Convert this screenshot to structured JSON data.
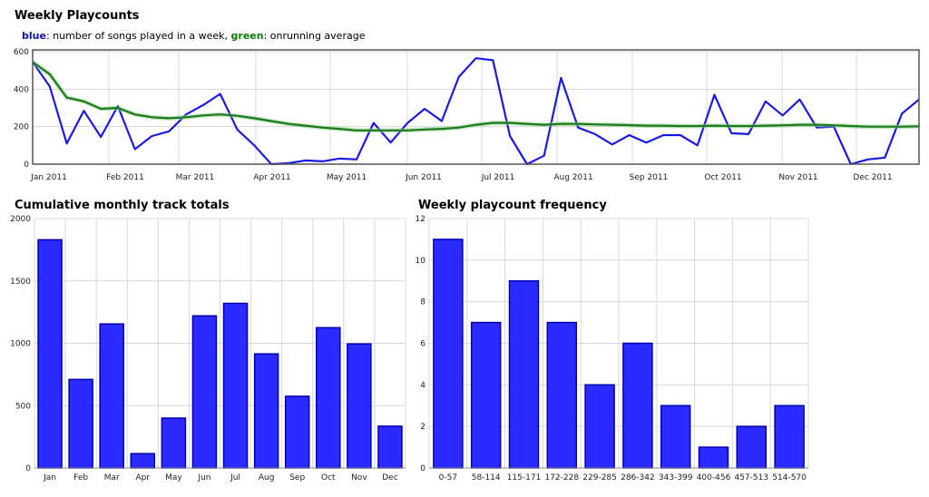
{
  "charts": {
    "weekly": {
      "title": "Weekly Playcounts"
    },
    "monthly": {
      "title": "Cumulative monthly track totals"
    },
    "frequency": {
      "title": "Weekly playcount frequency"
    }
  },
  "legend": {
    "blue_word": "blue",
    "blue_text": ": number of songs played in a week, ",
    "green_word": "green",
    "green_text": ": onrunning average"
  },
  "colors": {
    "blue": "#1a1ae6",
    "bar_fill": "#2b2bff",
    "bar_stroke": "#0000b0",
    "green": "#1a7a1a",
    "grid": "#d8d8d8",
    "frame": "#555555"
  },
  "chart_data": [
    {
      "type": "line",
      "title": "Weekly Playcounts",
      "x_tick_labels": [
        "Jan 2011",
        "Feb 2011",
        "Mar 2011",
        "Apr 2011",
        "May 2011",
        "Jun 2011",
        "Jul 2011",
        "Aug 2011",
        "Sep 2011",
        "Oct 2011",
        "Nov 2011",
        "Dec 2011"
      ],
      "ylim": [
        0,
        600
      ],
      "y_ticks": [
        0,
        200,
        400,
        600
      ],
      "grid": true,
      "series": [
        {
          "name": "blue",
          "values": [
            545,
            415,
            110,
            285,
            145,
            310,
            80,
            150,
            175,
            265,
            315,
            375,
            185,
            100,
            0,
            5,
            20,
            15,
            30,
            25,
            220,
            115,
            220,
            295,
            230,
            465,
            565,
            555,
            150,
            0,
            45,
            460,
            195,
            160,
            105,
            155,
            115,
            155,
            155,
            100,
            370,
            165,
            160,
            335,
            260,
            345,
            195,
            200,
            0,
            25,
            35,
            270,
            345
          ]
        },
        {
          "name": "green",
          "values": [
            545,
            480,
            355,
            335,
            295,
            300,
            265,
            250,
            245,
            250,
            260,
            265,
            258,
            245,
            230,
            215,
            205,
            195,
            188,
            180,
            180,
            180,
            180,
            185,
            188,
            195,
            210,
            220,
            220,
            215,
            210,
            215,
            215,
            212,
            210,
            208,
            205,
            205,
            203,
            203,
            205,
            203,
            203,
            205,
            207,
            210,
            210,
            207,
            203,
            200,
            200,
            200,
            202
          ]
        }
      ]
    },
    {
      "type": "bar",
      "title": "Cumulative monthly track totals",
      "categories": [
        "Jan",
        "Feb",
        "Mar",
        "Apr",
        "May",
        "Jun",
        "Jul",
        "Aug",
        "Sep",
        "Oct",
        "Nov",
        "Dec"
      ],
      "values": [
        1830,
        710,
        1155,
        115,
        400,
        1220,
        1320,
        915,
        575,
        1125,
        995,
        335
      ],
      "ylim": [
        0,
        2000
      ],
      "y_ticks": [
        0,
        500,
        1000,
        1500,
        2000
      ],
      "grid": true
    },
    {
      "type": "bar",
      "title": "Weekly playcount frequency",
      "categories": [
        "0-57",
        "58-114",
        "115-171",
        "172-228",
        "229-285",
        "286-342",
        "343-399",
        "400-456",
        "457-513",
        "514-570"
      ],
      "values": [
        11,
        7,
        9,
        7,
        4,
        6,
        3,
        1,
        2,
        3
      ],
      "ylim": [
        0,
        12
      ],
      "y_ticks": [
        0,
        2,
        4,
        6,
        8,
        10,
        12
      ],
      "grid": true
    }
  ]
}
